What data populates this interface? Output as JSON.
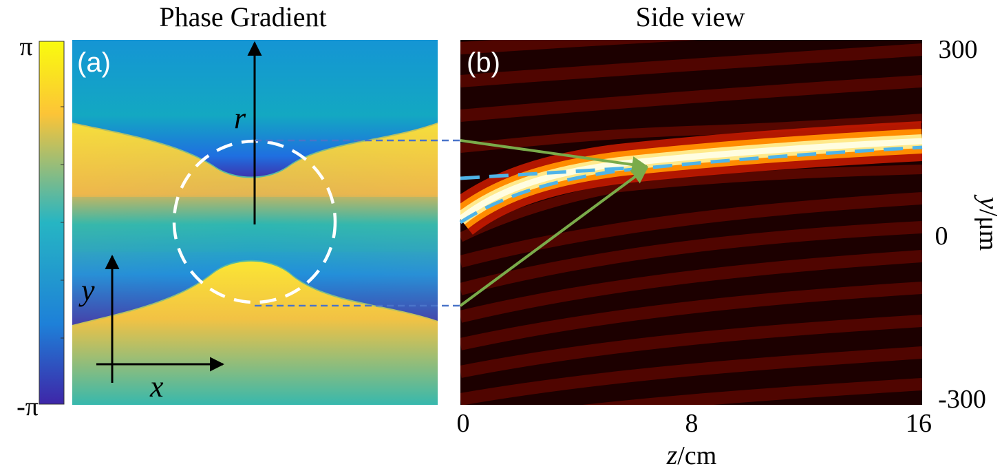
{
  "panel_a": {
    "title": "Phase Gradient",
    "label": "(a)",
    "colorbar": {
      "max_label": "π",
      "min_label": "-π"
    },
    "axis_labels": {
      "r": "r",
      "y": "y",
      "x": "x"
    }
  },
  "panel_b": {
    "title": "Side view",
    "label": "(b)",
    "x_ticks": [
      "0",
      "8",
      "16"
    ],
    "y_ticks": [
      "300",
      "0",
      "-300"
    ],
    "x_axis": {
      "var": "z",
      "unit": "/cm"
    },
    "y_axis": {
      "var": "y",
      "unit": "/μm"
    }
  },
  "colors": {
    "colorbar_top": "#f9fb0e",
    "colorbar_mid": "#26b5c3",
    "colorbar_bottom": "#3e26a8",
    "beam": "#fffde0",
    "background_dark": "#000000",
    "trajectory_dash": "#4fb4e8",
    "arrow_green": "#7aab4a",
    "connector_dash": "#4a74c9"
  }
}
